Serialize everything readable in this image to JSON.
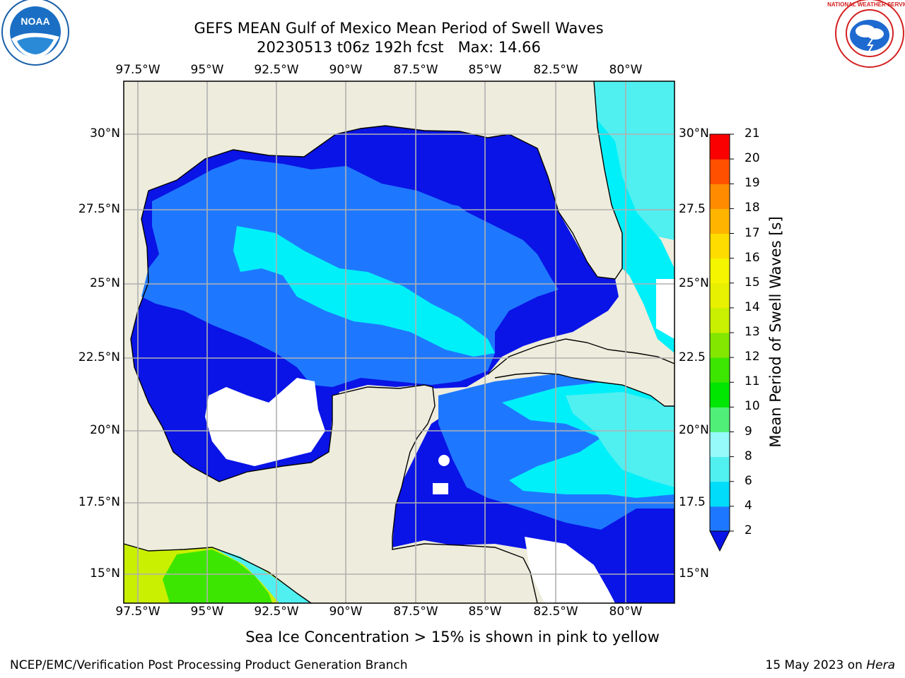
{
  "title": {
    "line1": "GEFS MEAN Gulf of Mexico Mean Period of Swell Waves",
    "line2": "20230513 t06z 192h fcst   Max: 14.66"
  },
  "map": {
    "longitude_labels": [
      "97.5°W",
      "95°W",
      "92.5°W",
      "90°W",
      "87.5°W",
      "85°W",
      "82.5°W",
      "80°W"
    ],
    "latitude_labels": [
      "30°N",
      "27.5°N",
      "25°N",
      "22.5°N",
      "20°N",
      "17.5°N",
      "15°N"
    ],
    "latitude_labels_right": [
      "30°N",
      "27.5",
      "25°N",
      "22.5",
      "20°N",
      "17.5",
      "15°N"
    ],
    "colors": {
      "land": "#eeecdc",
      "gridline": "#b0b0b0",
      "coast": "#000000",
      "no_data": "#ffffff"
    }
  },
  "colorbar": {
    "title": "Mean Period of Swell Waves [s]",
    "tick_labels": [
      "2",
      "4",
      "6",
      "8",
      "9",
      "10",
      "11",
      "12",
      "13",
      "14",
      "15",
      "16",
      "17",
      "18",
      "19",
      "20",
      "21"
    ],
    "colors": [
      "#1e78ff",
      "#00dcfa",
      "#50f0f0",
      "#96fafa",
      "#50f078",
      "#00e600",
      "#3ce600",
      "#82e600",
      "#c8f000",
      "#e6f000",
      "#f5f500",
      "#ffdc00",
      "#ffb400",
      "#ff8c00",
      "#ff5000",
      "#ff2800",
      "#fa0000"
    ],
    "extend_color": "#0a14e6"
  },
  "legend_text": {
    "subtitle": "Sea Ice Concentration > 15% is shown in pink to yellow",
    "credit": "NCEP/EMC/Verification Post Processing Product Generation Branch",
    "date": "15 May 2023 on",
    "machine": "Hera"
  },
  "logos": {
    "left": "NOAA",
    "right": "NATIONAL WEATHER SERVICE"
  }
}
